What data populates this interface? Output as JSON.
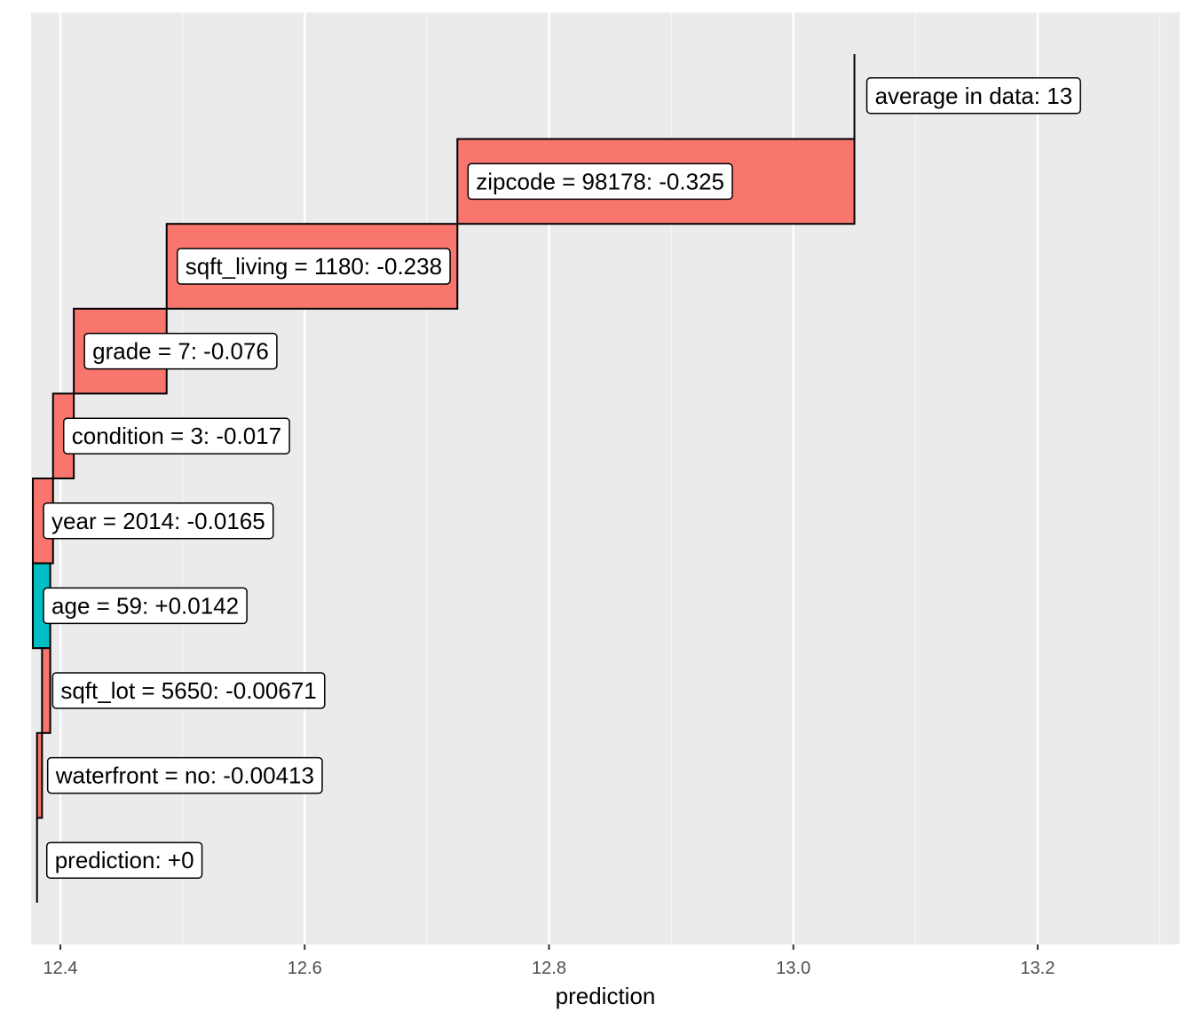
{
  "chart_data": {
    "type": "bar",
    "subtype": "waterfall / break-down",
    "orientation": "horizontal",
    "xlabel": "prediction",
    "ylabel": "",
    "title": "",
    "xlim": [
      12.38,
      13.31
    ],
    "x_ticks": [
      12.4,
      12.6,
      12.8,
      13.0,
      13.2
    ],
    "x_tick_labels": [
      "12.4",
      "12.6",
      "12.8",
      "13.0",
      "13.2"
    ],
    "grid": true,
    "legend": "none",
    "colors": {
      "panel_background": "#ebebeb",
      "grid_major": "#ffffff",
      "grid_minor": "#f7f7f7",
      "negative": "#f8766d",
      "positive": "#00bfc4",
      "outline": "#000000"
    },
    "baseline": {
      "label": "average in data: 13",
      "value": 13.05
    },
    "contributions": [
      {
        "label": "zipcode = 98178: -0.325",
        "start": 13.05,
        "end": 12.725,
        "sign": "negative"
      },
      {
        "label": "sqft_living = 1180: -0.238",
        "start": 12.725,
        "end": 12.487,
        "sign": "negative"
      },
      {
        "label": "grade = 7: -0.076",
        "start": 12.487,
        "end": 12.411,
        "sign": "negative"
      },
      {
        "label": "condition = 3: -0.017",
        "start": 12.411,
        "end": 12.394,
        "sign": "negative"
      },
      {
        "label": "year = 2014: -0.0165",
        "start": 12.394,
        "end": 12.3775,
        "sign": "negative"
      },
      {
        "label": "age = 59: +0.0142",
        "start": 12.3775,
        "end": 12.3917,
        "sign": "positive"
      },
      {
        "label": "sqft_lot = 5650: -0.00671",
        "start": 12.3917,
        "end": 12.385,
        "sign": "negative"
      },
      {
        "label": "waterfront = no: -0.00413",
        "start": 12.385,
        "end": 12.3809,
        "sign": "negative"
      }
    ],
    "prediction": {
      "label": "prediction: +0",
      "value": 12.3809
    }
  }
}
